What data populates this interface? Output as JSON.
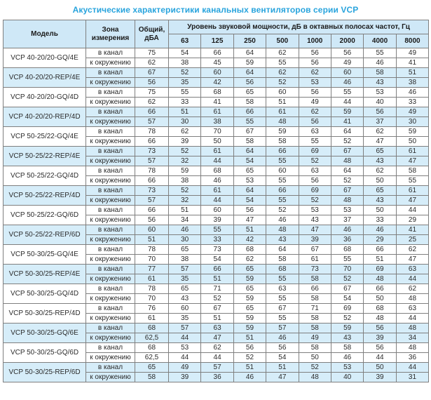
{
  "title": "Акустические характеристики канальных вентиляторов  серии VCP",
  "colors": {
    "title": "#29a4dd",
    "header_bg": "#cfe8f7",
    "stripe_bg": "#d6edf9",
    "border": "#7f7f7f",
    "text": "#2b2b2b"
  },
  "chart_data": {
    "type": "table",
    "title": "Акустические характеристики канальных вентиляторов серии VCP"
  },
  "table": {
    "headers": {
      "model": "Модель",
      "zone": "Зона измерения",
      "total": "Общий, дБА",
      "band_group": "Уровень звуковой мощности, дБ в октавных полосах частот, Гц",
      "frequencies": [
        "63",
        "125",
        "250",
        "500",
        "1000",
        "2000",
        "4000",
        "8000"
      ]
    },
    "models": [
      {
        "name": "VCP 40-20/20-GQ/4E",
        "shaded": false,
        "rows": [
          {
            "zone": "в канал",
            "total": "75",
            "bands": [
              54,
              66,
              64,
              62,
              56,
              56,
              55,
              49
            ]
          },
          {
            "zone": "к окружению",
            "total": "62",
            "bands": [
              38,
              45,
              59,
              55,
              56,
              49,
              46,
              41
            ]
          }
        ]
      },
      {
        "name": "VCP 40-20/20-REP/4E",
        "shaded": true,
        "rows": [
          {
            "zone": "в канал",
            "total": "67",
            "bands": [
              52,
              60,
              64,
              62,
              62,
              60,
              58,
              51
            ]
          },
          {
            "zone": "к окружению",
            "total": "56",
            "bands": [
              35,
              42,
              56,
              52,
              53,
              46,
              43,
              38
            ]
          }
        ]
      },
      {
        "name": "VCP 40-20/20-GQ/4D",
        "shaded": false,
        "rows": [
          {
            "zone": "в канал",
            "total": "75",
            "bands": [
              55,
              68,
              65,
              60,
              56,
              55,
              53,
              46
            ]
          },
          {
            "zone": "к окружению",
            "total": "62",
            "bands": [
              33,
              41,
              58,
              51,
              49,
              44,
              40,
              33
            ]
          }
        ]
      },
      {
        "name": "VCP 40-20/20-REP/4D",
        "shaded": true,
        "rows": [
          {
            "zone": "в канал",
            "total": "66",
            "bands": [
              51,
              61,
              66,
              61,
              62,
              59,
              56,
              49
            ]
          },
          {
            "zone": "к окружению",
            "total": "57",
            "bands": [
              30,
              38,
              55,
              48,
              56,
              41,
              37,
              30
            ]
          }
        ]
      },
      {
        "name": "VCP 50-25/22-GQ/4E",
        "shaded": false,
        "rows": [
          {
            "zone": "в канал",
            "total": "78",
            "bands": [
              62,
              70,
              67,
              59,
              63,
              64,
              62,
              59
            ]
          },
          {
            "zone": "к окружению",
            "total": "66",
            "bands": [
              39,
              50,
              58,
              58,
              55,
              52,
              47,
              50
            ]
          }
        ]
      },
      {
        "name": "VCP 50-25/22-REP/4E",
        "shaded": true,
        "rows": [
          {
            "zone": "в канал",
            "total": "73",
            "bands": [
              52,
              61,
              64,
              66,
              69,
              67,
              65,
              61
            ]
          },
          {
            "zone": "к окружению",
            "total": "57",
            "bands": [
              32,
              44,
              54,
              55,
              52,
              48,
              43,
              47
            ]
          }
        ]
      },
      {
        "name": "VCP 50-25/22-GQ/4D",
        "shaded": false,
        "rows": [
          {
            "zone": "в канал",
            "total": "78",
            "bands": [
              59,
              68,
              65,
              60,
              63,
              64,
              62,
              58
            ]
          },
          {
            "zone": "к окружению",
            "total": "66",
            "bands": [
              38,
              46,
              53,
              55,
              56,
              52,
              50,
              55
            ]
          }
        ]
      },
      {
        "name": "VCP 50-25/22-REP/4D",
        "shaded": true,
        "rows": [
          {
            "zone": "в канал",
            "total": "73",
            "bands": [
              52,
              61,
              64,
              66,
              69,
              67,
              65,
              61
            ]
          },
          {
            "zone": "к окружению",
            "total": "57",
            "bands": [
              32,
              44,
              54,
              55,
              52,
              48,
              43,
              47
            ]
          }
        ]
      },
      {
        "name": "VCP 50-25/22-GQ/6D",
        "shaded": false,
        "rows": [
          {
            "zone": "в канал",
            "total": "66",
            "bands": [
              51,
              60,
              56,
              52,
              53,
              53,
              50,
              44
            ]
          },
          {
            "zone": "к окружению",
            "total": "56",
            "bands": [
              34,
              39,
              47,
              46,
              43,
              37,
              33,
              29
            ]
          }
        ]
      },
      {
        "name": "VCP 50-25/22-REP/6D",
        "shaded": true,
        "rows": [
          {
            "zone": "в канал",
            "total": "60",
            "bands": [
              46,
              55,
              51,
              48,
              47,
              46,
              46,
              41
            ]
          },
          {
            "zone": "к окружению",
            "total": "51",
            "bands": [
              30,
              33,
              42,
              43,
              39,
              36,
              29,
              25
            ]
          }
        ]
      },
      {
        "name": "VCP 50-30/25-GQ/4E",
        "shaded": false,
        "rows": [
          {
            "zone": "в канал",
            "total": "78",
            "bands": [
              65,
              73,
              68,
              64,
              67,
              68,
              66,
              62
            ]
          },
          {
            "zone": "к окружению",
            "total": "70",
            "bands": [
              38,
              54,
              62,
              58,
              61,
              55,
              51,
              47
            ]
          }
        ]
      },
      {
        "name": "VCP 50-30/25-REP/4E",
        "shaded": true,
        "rows": [
          {
            "zone": "в канал",
            "total": "77",
            "bands": [
              57,
              66,
              65,
              68,
              73,
              70,
              69,
              63
            ]
          },
          {
            "zone": "к окружению",
            "total": "61",
            "bands": [
              35,
              51,
              59,
              55,
              58,
              52,
              48,
              44
            ]
          }
        ]
      },
      {
        "name": "VCP 50-30/25-GQ/4D",
        "shaded": false,
        "rows": [
          {
            "zone": "в канал",
            "total": "78",
            "bands": [
              65,
              71,
              65,
              63,
              66,
              67,
              66,
              62
            ]
          },
          {
            "zone": "к окружению",
            "total": "70",
            "bands": [
              43,
              52,
              59,
              55,
              58,
              54,
              50,
              48
            ]
          }
        ]
      },
      {
        "name": "VCP 50-30/25-REP/4D",
        "shaded": false,
        "rows": [
          {
            "zone": "в канал",
            "total": "76",
            "bands": [
              60,
              67,
              65,
              67,
              71,
              69,
              68,
              63
            ]
          },
          {
            "zone": "к окружению",
            "total": "61",
            "bands": [
              35,
              51,
              59,
              55,
              58,
              52,
              48,
              44
            ]
          }
        ]
      },
      {
        "name": "VCP 50-30/25-GQ/6E",
        "shaded": true,
        "rows": [
          {
            "zone": "в канал",
            "total": "68",
            "bands": [
              57,
              63,
              59,
              57,
              58,
              59,
              56,
              48
            ]
          },
          {
            "zone": "к окружению",
            "total": "62,5",
            "bands": [
              44,
              47,
              51,
              46,
              49,
              43,
              39,
              34
            ]
          }
        ]
      },
      {
        "name": "VCP 50-30/25-GQ/6D",
        "shaded": false,
        "rows": [
          {
            "zone": "в канал",
            "total": "68",
            "bands": [
              53,
              62,
              56,
              56,
              58,
              58,
              56,
              48
            ]
          },
          {
            "zone": "к окружению",
            "total": "62,5",
            "bands": [
              44,
              44,
              52,
              54,
              50,
              46,
              44,
              36
            ]
          }
        ]
      },
      {
        "name": "VCP 50-30/25-REP/6D",
        "shaded": true,
        "rows": [
          {
            "zone": "в канал",
            "total": "65",
            "bands": [
              49,
              57,
              51,
              51,
              52,
              53,
              50,
              44
            ]
          },
          {
            "zone": "к окружению",
            "total": "58",
            "bands": [
              39,
              36,
              46,
              47,
              48,
              40,
              39,
              31
            ]
          }
        ]
      }
    ]
  }
}
